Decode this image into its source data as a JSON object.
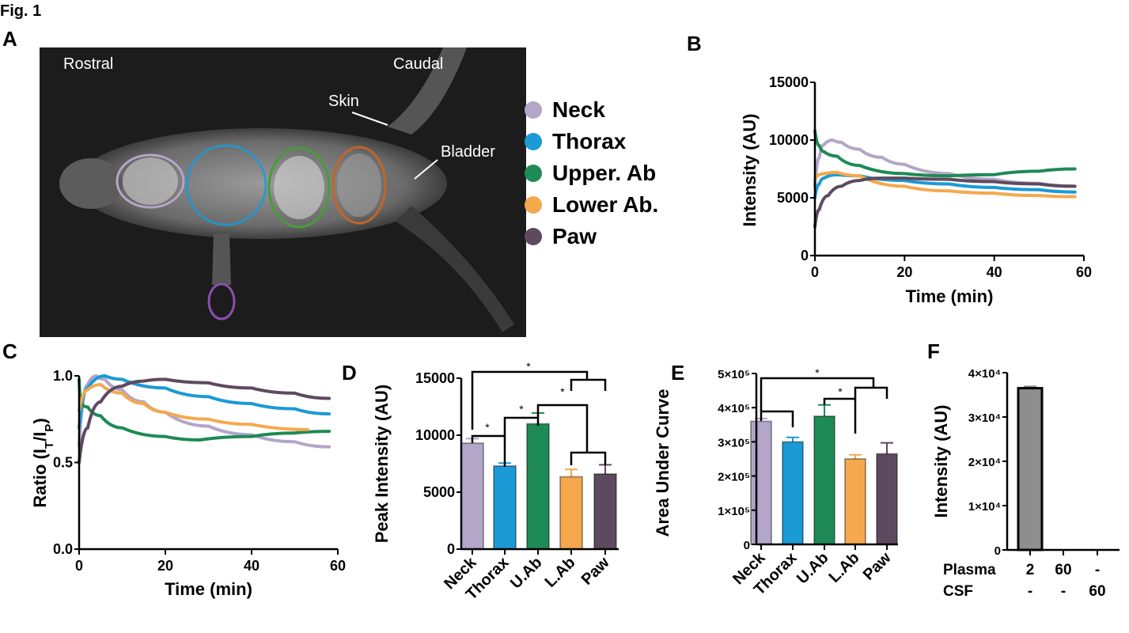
{
  "figure_label": "Fig. 1",
  "panel_letters": {
    "a": "A",
    "b": "B",
    "c": "C",
    "d": "D",
    "e": "E",
    "f": "F"
  },
  "colors": {
    "neck": "#b3a6c9",
    "thorax": "#1b9ad6",
    "upper_ab": "#1e8a55",
    "lower_ab": "#f5a84e",
    "paw": "#5e4a5e",
    "plasma": "#8e8e8e"
  },
  "panel_a": {
    "labels": {
      "rostral": "Rostral",
      "caudal": "Caudal",
      "skin": "Skin",
      "bladder": "Bladder"
    },
    "legend": [
      {
        "label": "Neck",
        "color": "#b3a6c9"
      },
      {
        "label": "Thorax",
        "color": "#1b9ad6"
      },
      {
        "label": "Upper. Ab",
        "color": "#1e8a55"
      },
      {
        "label": "Lower Ab.",
        "color": "#f5a84e"
      },
      {
        "label": "Paw",
        "color": "#5e4a5e"
      }
    ]
  },
  "chart_data": [
    {
      "panel": "B",
      "type": "line",
      "xlabel": "Time (min)",
      "ylabel": "Intensity (AU)",
      "xlim": [
        0,
        60
      ],
      "ylim": [
        0,
        15000
      ],
      "xticks": [
        0,
        20,
        40,
        60
      ],
      "yticks": [
        0,
        5000,
        10000,
        15000
      ],
      "grid": false,
      "series": [
        {
          "name": "Neck",
          "color": "#b3a6c9",
          "points": [
            [
              0,
              6000
            ],
            [
              1,
              8500
            ],
            [
              2,
              9600
            ],
            [
              4,
              10000
            ],
            [
              6,
              9800
            ],
            [
              10,
              9200
            ],
            [
              15,
              8500
            ],
            [
              20,
              7900
            ],
            [
              30,
              7100
            ],
            [
              40,
              6600
            ],
            [
              50,
              6250
            ],
            [
              58,
              6000
            ]
          ]
        },
        {
          "name": "Thorax",
          "color": "#1b9ad6",
          "points": [
            [
              0,
              5000
            ],
            [
              1,
              6200
            ],
            [
              2,
              6700
            ],
            [
              5,
              7000
            ],
            [
              10,
              6900
            ],
            [
              20,
              6500
            ],
            [
              30,
              6200
            ],
            [
              40,
              5900
            ],
            [
              50,
              5700
            ],
            [
              58,
              5500
            ]
          ]
        },
        {
          "name": "Upper. Ab",
          "color": "#1e8a55",
          "points": [
            [
              0,
              10800
            ],
            [
              1,
              9500
            ],
            [
              2,
              9000
            ],
            [
              5,
              8600
            ],
            [
              10,
              7800
            ],
            [
              20,
              7100
            ],
            [
              30,
              6900
            ],
            [
              40,
              7000
            ],
            [
              50,
              7300
            ],
            [
              58,
              7500
            ]
          ]
        },
        {
          "name": "Lower Ab.",
          "color": "#f5a84e",
          "points": [
            [
              0,
              6500
            ],
            [
              1,
              7000
            ],
            [
              5,
              7200
            ],
            [
              10,
              6900
            ],
            [
              20,
              6000
            ],
            [
              30,
              5600
            ],
            [
              40,
              5400
            ],
            [
              50,
              5200
            ],
            [
              58,
              5100
            ]
          ]
        },
        {
          "name": "Paw",
          "color": "#5e4a5e",
          "points": [
            [
              0,
              2500
            ],
            [
              1,
              4000
            ],
            [
              3,
              5200
            ],
            [
              6,
              6000
            ],
            [
              10,
              6500
            ],
            [
              15,
              6700
            ],
            [
              20,
              6700
            ],
            [
              30,
              6600
            ],
            [
              40,
              6400
            ],
            [
              50,
              6200
            ],
            [
              58,
              6000
            ]
          ]
        }
      ]
    },
    {
      "panel": "C",
      "type": "line",
      "xlabel": "Time (min)",
      "ylabel": "Ratio (IT/IP)",
      "xlim": [
        0,
        60
      ],
      "ylim": [
        0,
        1
      ],
      "xticks": [
        0,
        20,
        40,
        60
      ],
      "yticks": [
        "0.0",
        "0.5",
        "1.0"
      ],
      "grid": false,
      "series": [
        {
          "name": "Neck",
          "color": "#b3a6c9",
          "points": [
            [
              0,
              0.6
            ],
            [
              2,
              0.95
            ],
            [
              4,
              1.0
            ],
            [
              6,
              0.98
            ],
            [
              10,
              0.92
            ],
            [
              15,
              0.85
            ],
            [
              20,
              0.79
            ],
            [
              30,
              0.71
            ],
            [
              40,
              0.66
            ],
            [
              50,
              0.62
            ],
            [
              58,
              0.59
            ]
          ]
        },
        {
          "name": "Thorax",
          "color": "#1b9ad6",
          "points": [
            [
              0,
              0.7
            ],
            [
              2,
              0.93
            ],
            [
              6,
              1.0
            ],
            [
              10,
              0.98
            ],
            [
              20,
              0.93
            ],
            [
              30,
              0.88
            ],
            [
              40,
              0.84
            ],
            [
              50,
              0.81
            ],
            [
              58,
              0.78
            ]
          ]
        },
        {
          "name": "Upper. Ab",
          "color": "#1e8a55",
          "points": [
            [
              0,
              0.98
            ],
            [
              0.5,
              0.84
            ],
            [
              2,
              0.82
            ],
            [
              5,
              0.77
            ],
            [
              10,
              0.7
            ],
            [
              20,
              0.65
            ],
            [
              28,
              0.63
            ],
            [
              40,
              0.65
            ],
            [
              50,
              0.67
            ],
            [
              58,
              0.68
            ]
          ]
        },
        {
          "name": "Lower Ab.",
          "color": "#f5a84e",
          "points": [
            [
              0,
              0.8
            ],
            [
              2,
              0.92
            ],
            [
              5,
              0.95
            ],
            [
              10,
              0.9
            ],
            [
              15,
              0.84
            ],
            [
              20,
              0.79
            ],
            [
              30,
              0.75
            ],
            [
              40,
              0.72
            ],
            [
              53,
              0.69
            ]
          ]
        },
        {
          "name": "Paw",
          "color": "#5e4a5e",
          "points": [
            [
              0,
              0.5
            ],
            [
              2,
              0.7
            ],
            [
              5,
              0.85
            ],
            [
              10,
              0.94
            ],
            [
              15,
              0.97
            ],
            [
              20,
              0.98
            ],
            [
              30,
              0.96
            ],
            [
              40,
              0.93
            ],
            [
              50,
              0.9
            ],
            [
              58,
              0.87
            ]
          ]
        }
      ]
    },
    {
      "panel": "D",
      "type": "bar",
      "ylabel": "Peak Intensity (AU)",
      "ylim": [
        0,
        15000
      ],
      "yticks": [
        "0",
        "5000",
        "10000",
        "15000"
      ],
      "categories": [
        "Neck",
        "Thorax",
        "U.Ab",
        "L.Ab",
        "Paw"
      ],
      "values": [
        9300,
        7300,
        11000,
        6350,
        6600
      ],
      "errors": [
        400,
        250,
        950,
        650,
        800
      ],
      "colors": [
        "#b3a6c9",
        "#1b9ad6",
        "#1e8a55",
        "#f5a84e",
        "#5e4a5e"
      ],
      "significance": [
        {
          "from": "Neck",
          "to": "Thorax",
          "label": "*"
        },
        {
          "from": "Thorax",
          "to": "U.Ab",
          "label": "*"
        },
        {
          "from": "U.Ab",
          "to": "L.Ab + Paw",
          "label": "*"
        },
        {
          "from": "Neck",
          "to": "L.Ab + Paw",
          "label": "*"
        }
      ]
    },
    {
      "panel": "E",
      "type": "bar",
      "ylabel": "Area Under Curve",
      "ylim": [
        0,
        500000
      ],
      "yticks": [
        "0",
        "1×10⁵",
        "2×10⁵",
        "3×10⁵",
        "4×10⁵",
        "5×10⁵"
      ],
      "categories": [
        "Neck",
        "Thorax",
        "U.Ab",
        "L.Ab",
        "Paw"
      ],
      "values": [
        360000,
        300000,
        375000,
        250000,
        265000
      ],
      "errors": [
        8000,
        13000,
        33000,
        12000,
        32000
      ],
      "colors": [
        "#b3a6c9",
        "#1b9ad6",
        "#1e8a55",
        "#f5a84e",
        "#5e4a5e"
      ],
      "significance": [
        {
          "from": "Neck",
          "to": "Thorax",
          "label": ""
        },
        {
          "from": "U.Ab",
          "to": "L.Ab",
          "label": "*"
        },
        {
          "from": "Neck",
          "to": "L.Ab + Paw",
          "label": "*"
        }
      ]
    },
    {
      "panel": "F",
      "type": "bar",
      "ylabel": "Intensity (AU)",
      "ylim": [
        0,
        40000
      ],
      "yticks": [
        "0",
        "1×10⁴",
        "2×10⁴",
        "3×10⁴",
        "4×10⁴"
      ],
      "row_labels": [
        "Plasma",
        "CSF"
      ],
      "columns": [
        {
          "plasma": "2",
          "csf": "-"
        },
        {
          "plasma": "60",
          "csf": "-"
        },
        {
          "plasma": "-",
          "csf": "60"
        }
      ],
      "values": [
        36500,
        0,
        0
      ],
      "errors": [
        400,
        0,
        0
      ],
      "colors": [
        "#8e8e8e",
        "#8e8e8e",
        "#8e8e8e"
      ]
    }
  ]
}
